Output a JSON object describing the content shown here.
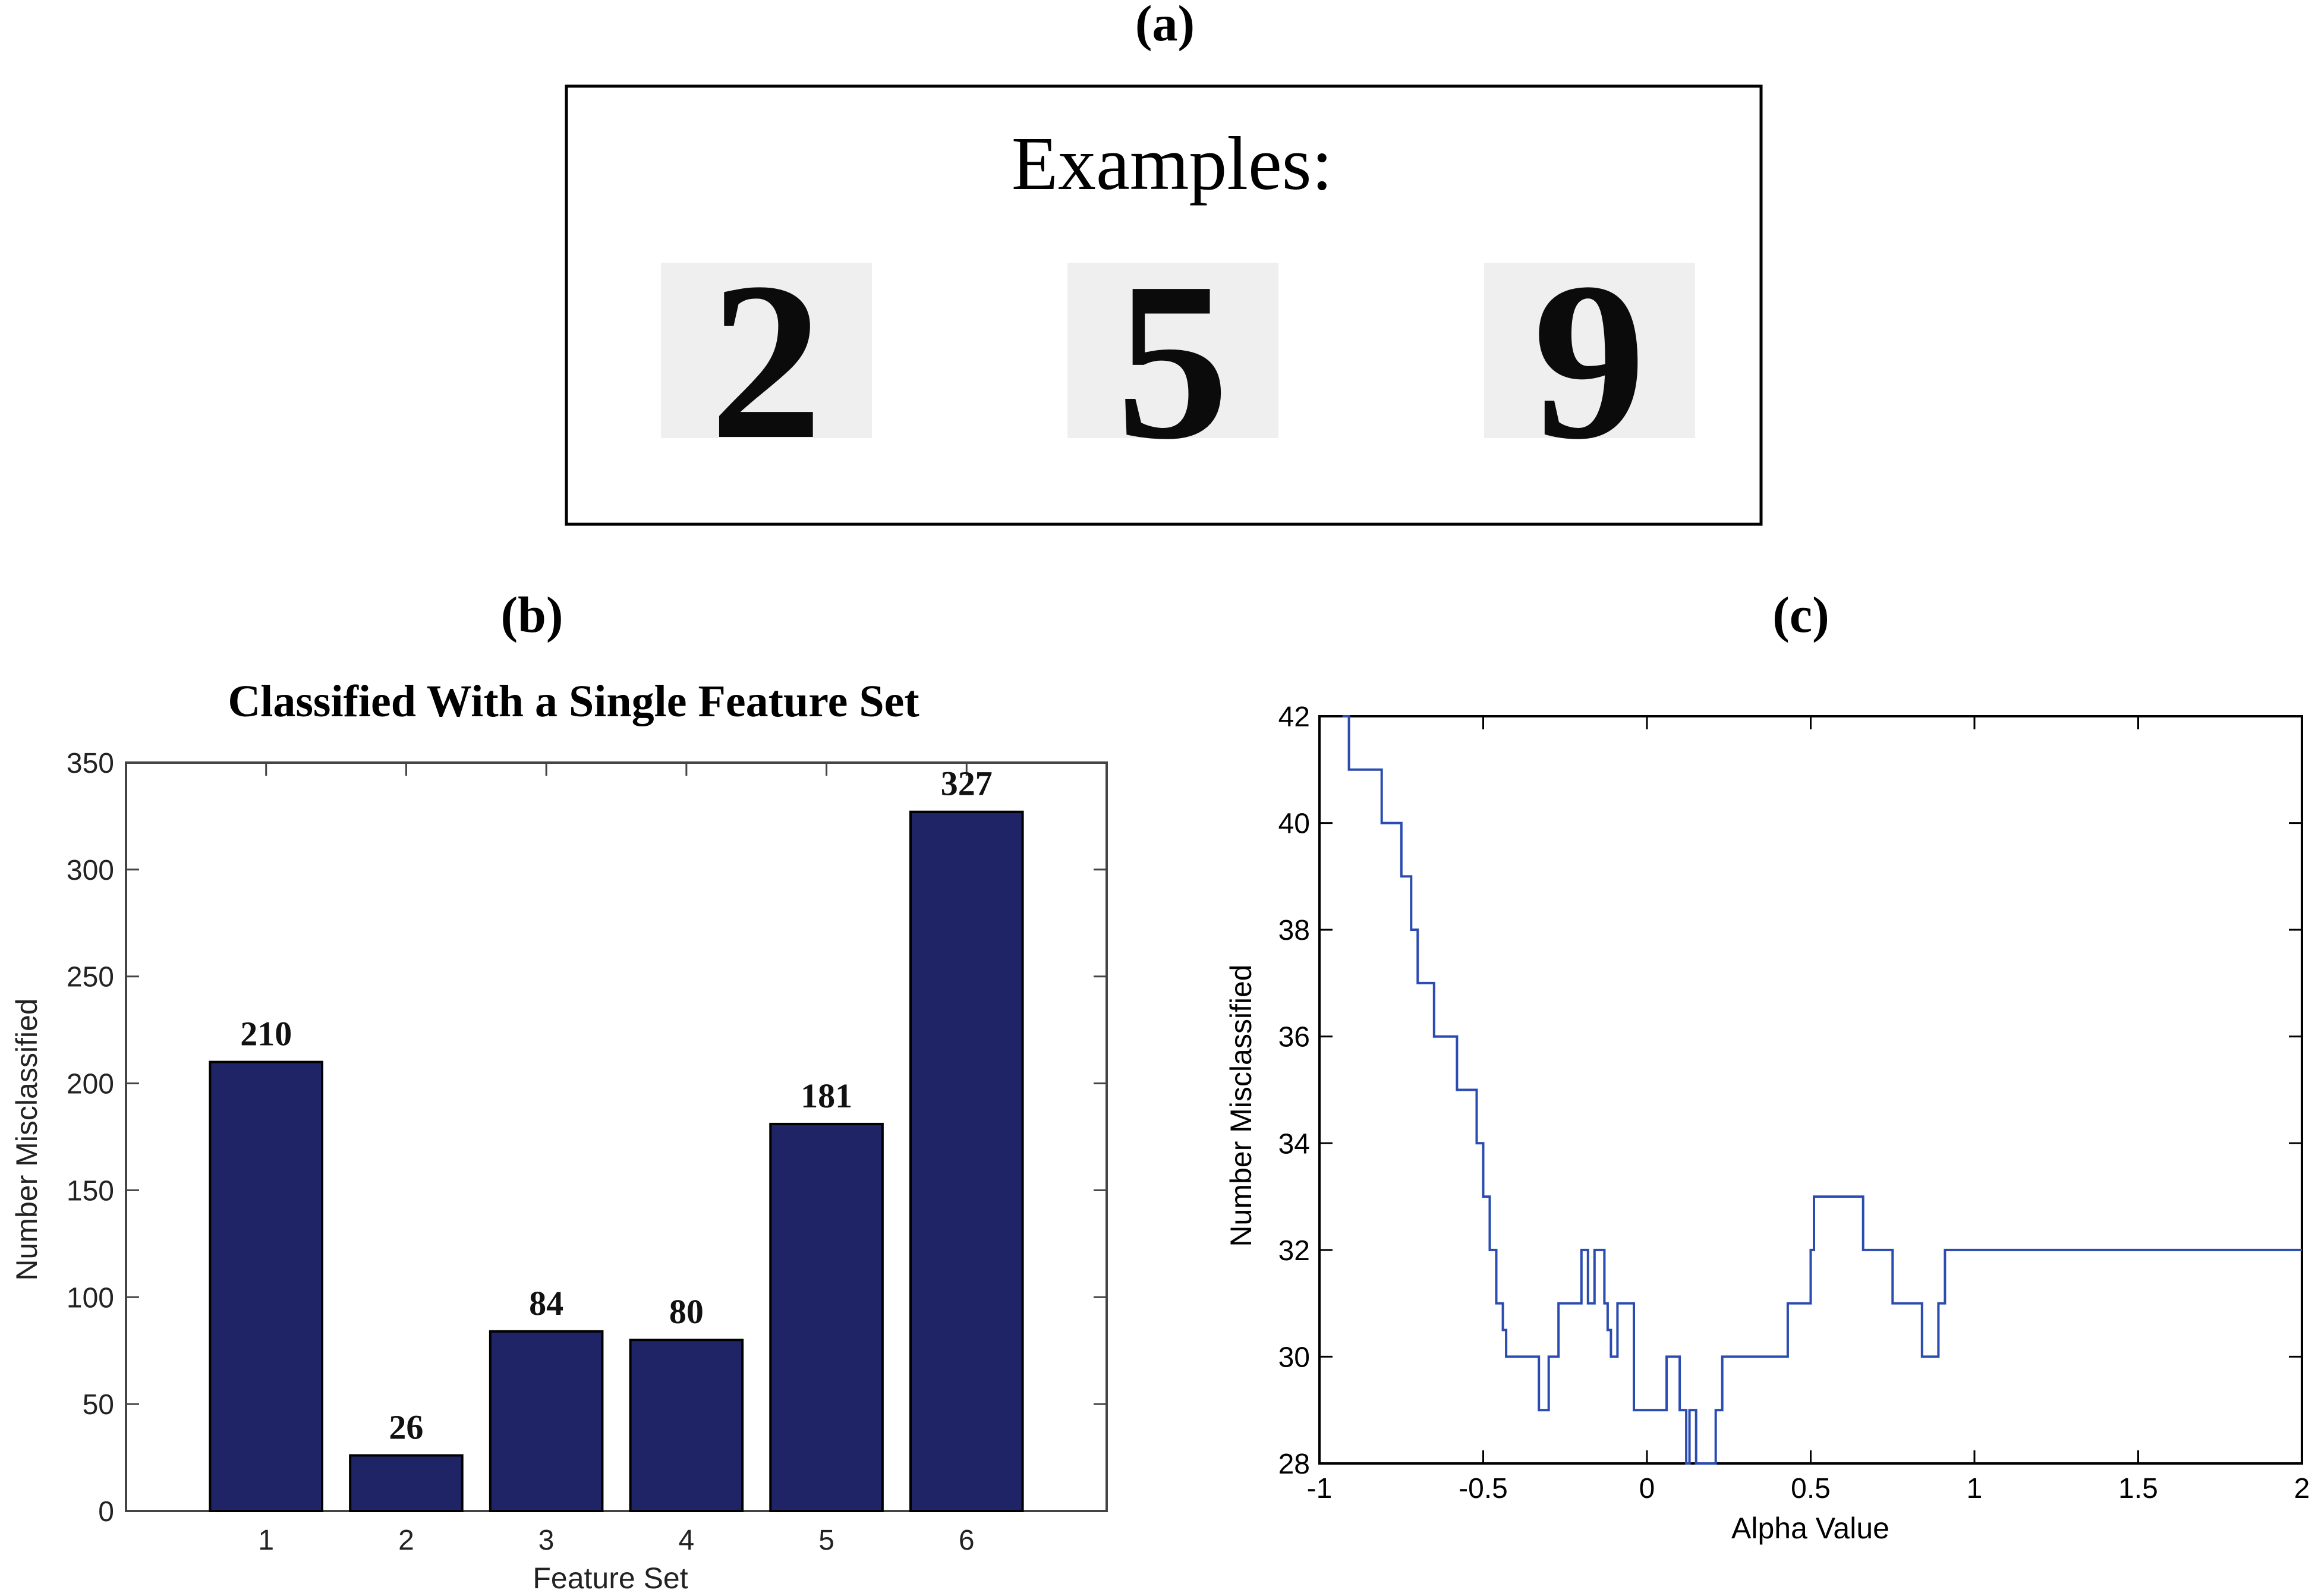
{
  "panel_a": {
    "label": "(a)",
    "examples_title": "Examples:",
    "digits": [
      {
        "name": "digit-2",
        "value": "2"
      },
      {
        "name": "digit-5",
        "value": "5"
      },
      {
        "name": "digit-9",
        "value": "9"
      }
    ]
  },
  "chart_data": [
    {
      "id": "b",
      "panel_label": "(b)",
      "type": "bar",
      "title": "Classified With a Single Feature Set",
      "xlabel": "Feature Set",
      "ylabel": "Number Misclassified",
      "categories": [
        "1",
        "2",
        "3",
        "4",
        "5",
        "6"
      ],
      "values": [
        210,
        26,
        84,
        80,
        181,
        327
      ],
      "data_labels": [
        "210",
        "26",
        "84",
        "80",
        "181",
        "327"
      ],
      "ylim": [
        0,
        350
      ],
      "yticks": [
        0,
        50,
        100,
        150,
        200,
        250,
        300,
        350
      ],
      "xlim": [
        0,
        7
      ],
      "bar_color": "#1f2466",
      "grid": false
    },
    {
      "id": "c",
      "panel_label": "(c)",
      "type": "line",
      "title": "",
      "xlabel": "Alpha Value",
      "ylabel": "Number Misclassified",
      "xlim": [
        -1,
        2
      ],
      "ylim": [
        28,
        42
      ],
      "xticks": [
        -1,
        -0.5,
        0,
        0.5,
        1,
        1.5,
        2
      ],
      "xtick_labels": [
        "-1",
        "-0.5",
        "0",
        "0.5",
        "1",
        "1.5",
        "2"
      ],
      "yticks": [
        28,
        30,
        32,
        34,
        36,
        38,
        40,
        42
      ],
      "line_color": "#2a4bb0",
      "grid": false,
      "series": [
        {
          "x": [
            -0.93,
            -0.91,
            -0.91,
            -0.81,
            -0.81,
            -0.75,
            -0.75,
            -0.72,
            -0.72,
            -0.7,
            -0.7,
            -0.65,
            -0.65,
            -0.58,
            -0.58,
            -0.52,
            -0.52,
            -0.5,
            -0.5,
            -0.48,
            -0.48,
            -0.46,
            -0.46,
            -0.44,
            -0.44,
            -0.43,
            -0.43,
            -0.42,
            -0.42,
            -0.33,
            -0.33,
            -0.3,
            -0.3,
            -0.27,
            -0.27,
            -0.2,
            -0.2,
            -0.18,
            -0.18,
            -0.16,
            -0.16,
            -0.13,
            -0.13,
            -0.12,
            -0.12,
            -0.11,
            -0.11,
            -0.09,
            -0.09,
            -0.08,
            -0.08,
            -0.06,
            -0.06,
            -0.04,
            -0.04,
            0.06,
            0.06,
            0.1,
            0.1,
            0.11,
            0.11,
            0.12,
            0.12,
            0.13,
            0.13,
            0.15,
            0.15,
            0.21,
            0.21,
            0.23,
            0.23,
            0.43,
            0.43,
            0.5,
            0.5,
            0.51,
            0.51,
            0.66,
            0.66,
            0.75,
            0.75,
            0.84,
            0.84,
            0.89,
            0.89,
            0.91,
            0.91,
            0.93,
            0.93,
            0.98,
            0.98,
            1.55,
            1.55,
            1.88,
            1.88,
            1.96,
            1.96,
            2.0
          ],
          "y": [
            42,
            42,
            41,
            41,
            40,
            40,
            39,
            39,
            38,
            38,
            37,
            37,
            36,
            36,
            35,
            35,
            34,
            34,
            33,
            33,
            32,
            32,
            31,
            31,
            30.5,
            30.5,
            30,
            30,
            30,
            30,
            29,
            29,
            30,
            30,
            31,
            31,
            32,
            32,
            31,
            31,
            32,
            32,
            31,
            31,
            30.5,
            30.5,
            30,
            30,
            31,
            31,
            31,
            31,
            31,
            31,
            29,
            29,
            30,
            30,
            29,
            29,
            29,
            29,
            28,
            28,
            29,
            29,
            28,
            28,
            29,
            29,
            30,
            30,
            31,
            31,
            32,
            32,
            33,
            33,
            32,
            32,
            31,
            31,
            30,
            30,
            31,
            31,
            32,
            32,
            32,
            32,
            32,
            32,
            32,
            32,
            32,
            32,
            32,
            32
          ]
        }
      ]
    }
  ]
}
